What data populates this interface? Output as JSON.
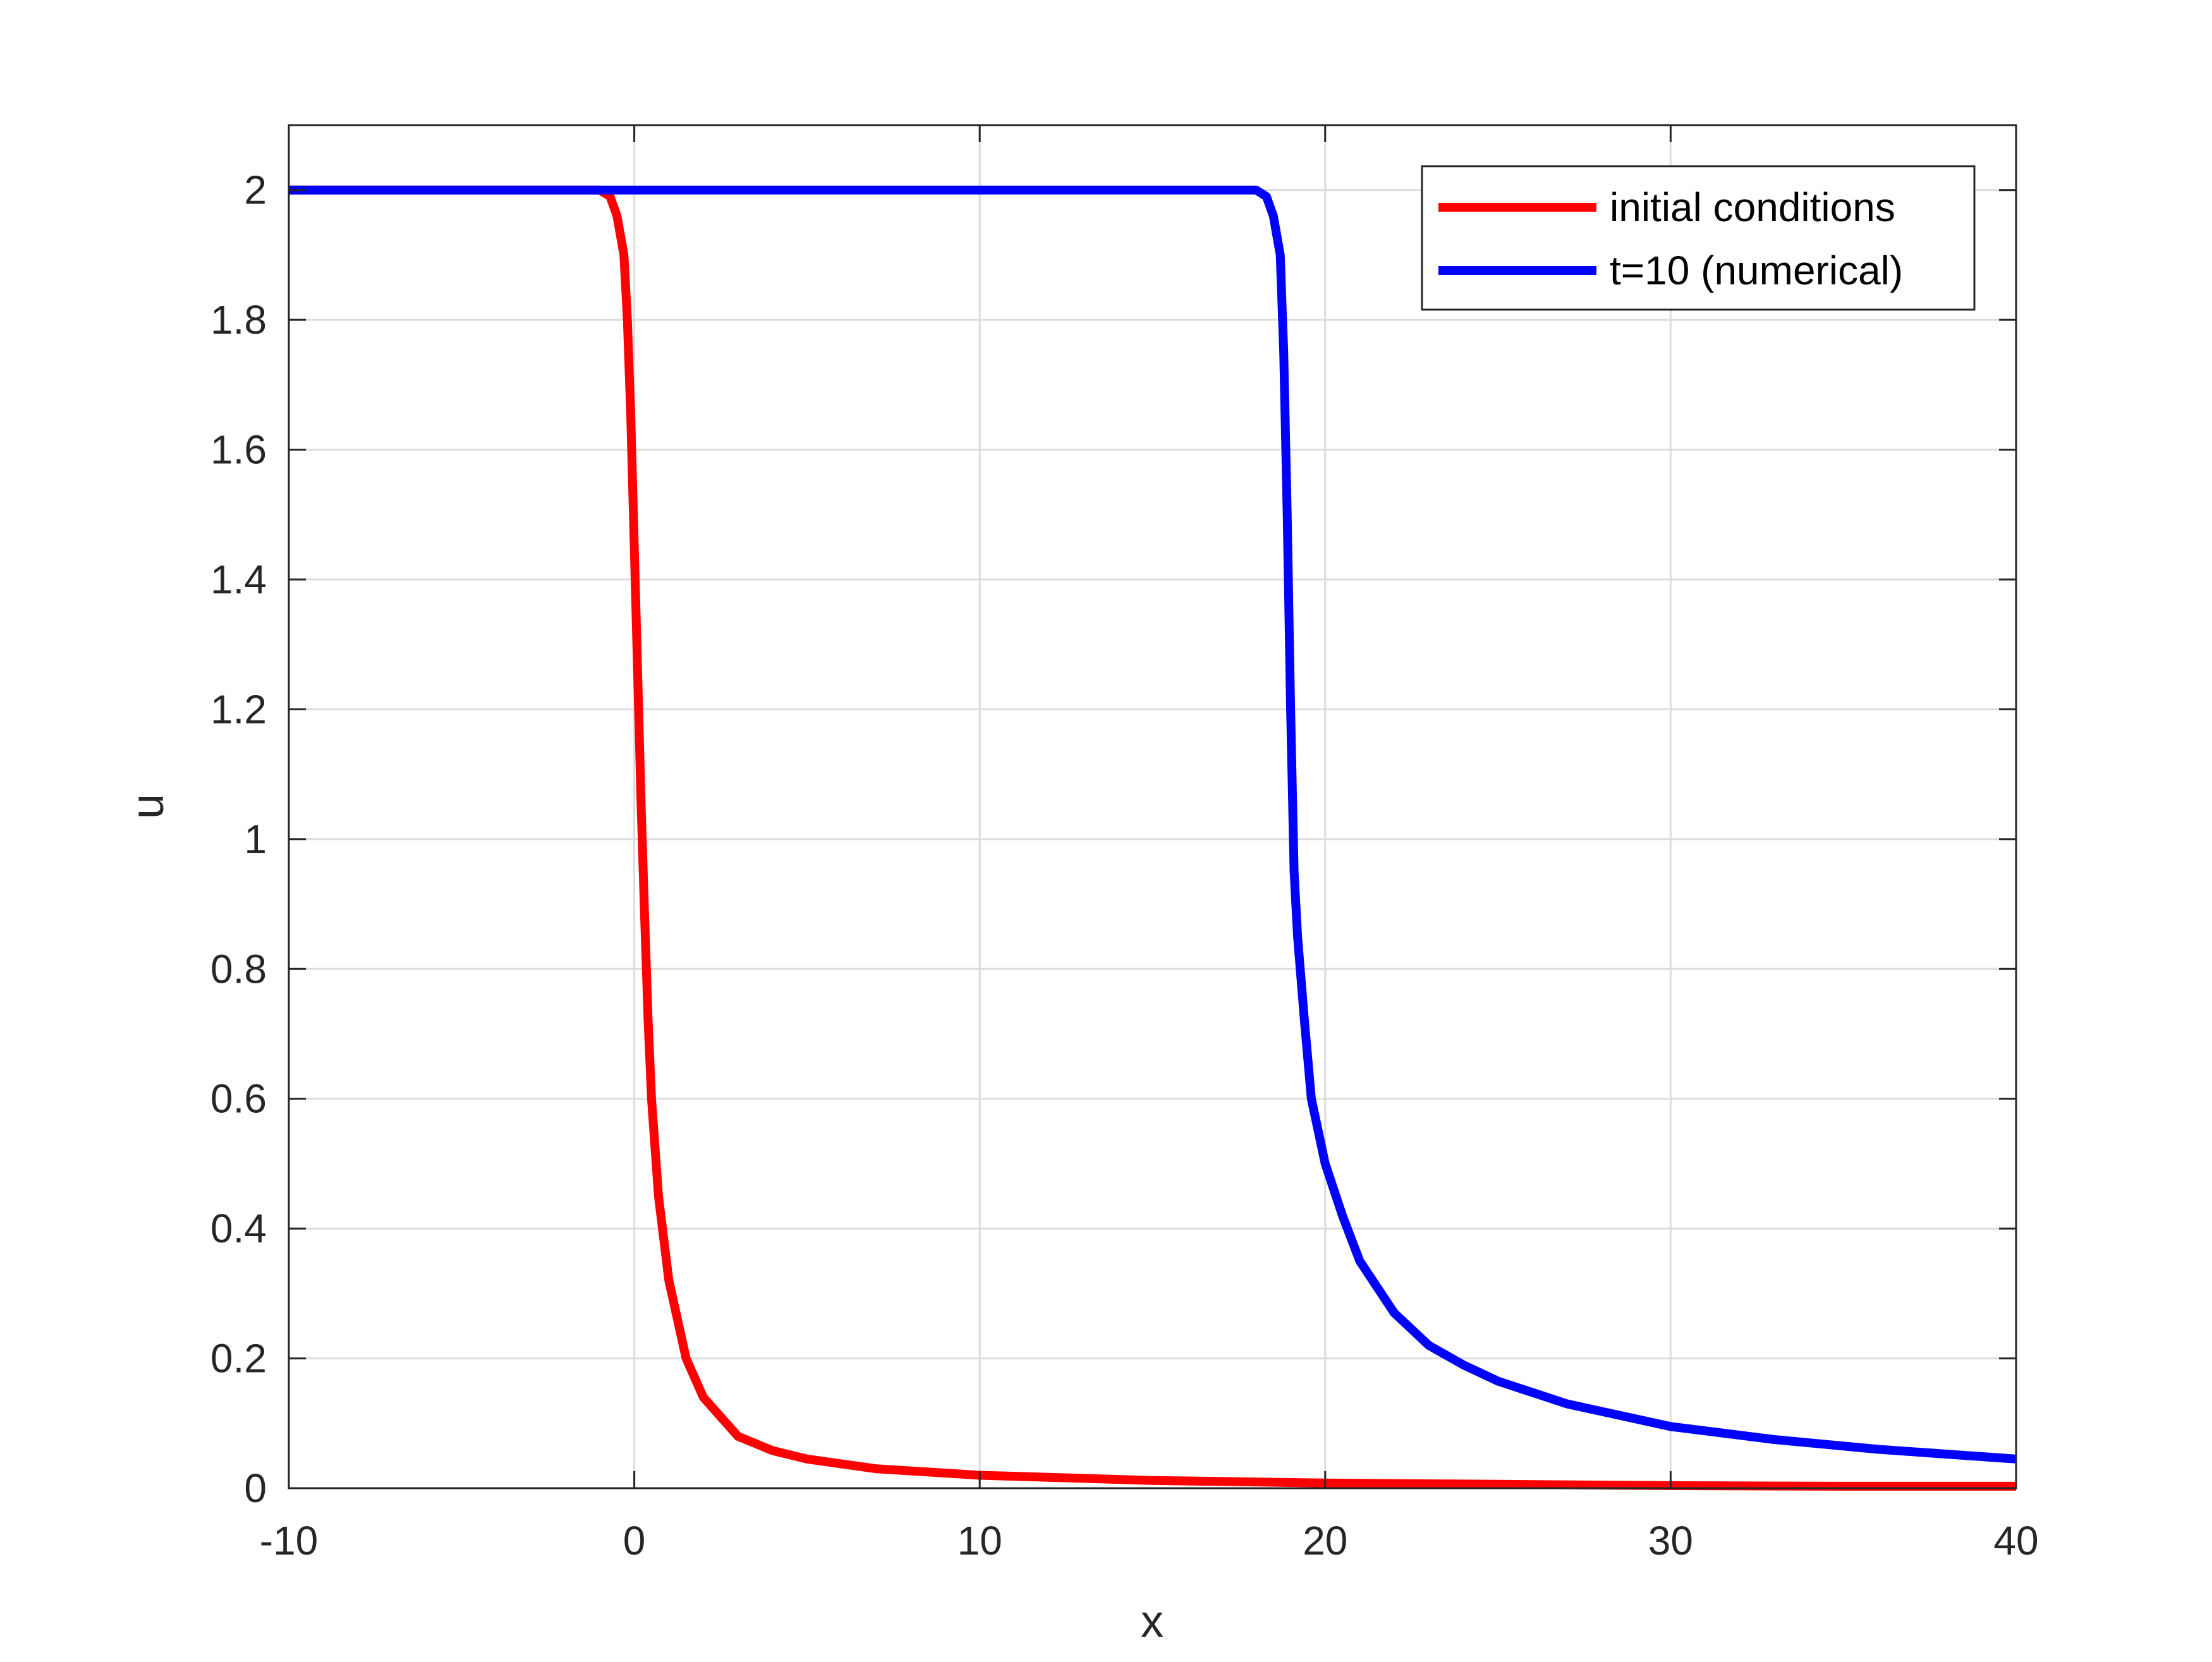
{
  "chart_data": {
    "type": "line",
    "title": "",
    "xlabel": "x",
    "ylabel": "u",
    "xlim": [
      -10,
      40
    ],
    "ylim": [
      0,
      2.1
    ],
    "grid": true,
    "legend_position": "top-right",
    "x_ticks": [
      -10,
      0,
      10,
      20,
      30,
      40
    ],
    "y_ticks": [
      0,
      0.2,
      0.4,
      0.6,
      0.8,
      1,
      1.2,
      1.4,
      1.6,
      1.8,
      2
    ],
    "x_tick_labels": [
      "-10",
      "0",
      "10",
      "20",
      "30",
      "40"
    ],
    "y_tick_labels": [
      "0",
      "0.2",
      "0.4",
      "0.6",
      "0.8",
      "1",
      "1.2",
      "1.4",
      "1.6",
      "1.8",
      "2"
    ],
    "series": [
      {
        "name": "initial conditions",
        "color": "#ff0000",
        "x": [
          -10,
          -1,
          -0.7,
          -0.5,
          -0.3,
          -0.2,
          -0.1,
          0,
          0.1,
          0.2,
          0.3,
          0.4,
          0.5,
          0.7,
          1,
          1.5,
          2,
          3,
          4,
          5,
          7,
          10,
          15,
          20,
          25,
          30,
          35,
          40
        ],
        "y": [
          2,
          2,
          1.99,
          1.96,
          1.9,
          1.8,
          1.65,
          1.45,
          1.25,
          1.05,
          0.88,
          0.72,
          0.6,
          0.45,
          0.32,
          0.2,
          0.14,
          0.08,
          0.058,
          0.045,
          0.03,
          0.02,
          0.012,
          0.008,
          0.006,
          0.004,
          0.003,
          0.003
        ]
      },
      {
        "name": "t=10 (numerical)",
        "color": "#0000ff",
        "x": [
          -10,
          18,
          18.3,
          18.5,
          18.7,
          18.8,
          18.9,
          19,
          19.1,
          19.2,
          19.4,
          19.6,
          20,
          20.5,
          21,
          22,
          23,
          24,
          25,
          27,
          30,
          33,
          36,
          40
        ],
        "y": [
          2,
          2,
          1.99,
          1.96,
          1.9,
          1.75,
          1.5,
          1.2,
          0.95,
          0.85,
          0.72,
          0.6,
          0.5,
          0.42,
          0.35,
          0.27,
          0.22,
          0.19,
          0.165,
          0.13,
          0.095,
          0.075,
          0.06,
          0.045
        ]
      }
    ]
  }
}
